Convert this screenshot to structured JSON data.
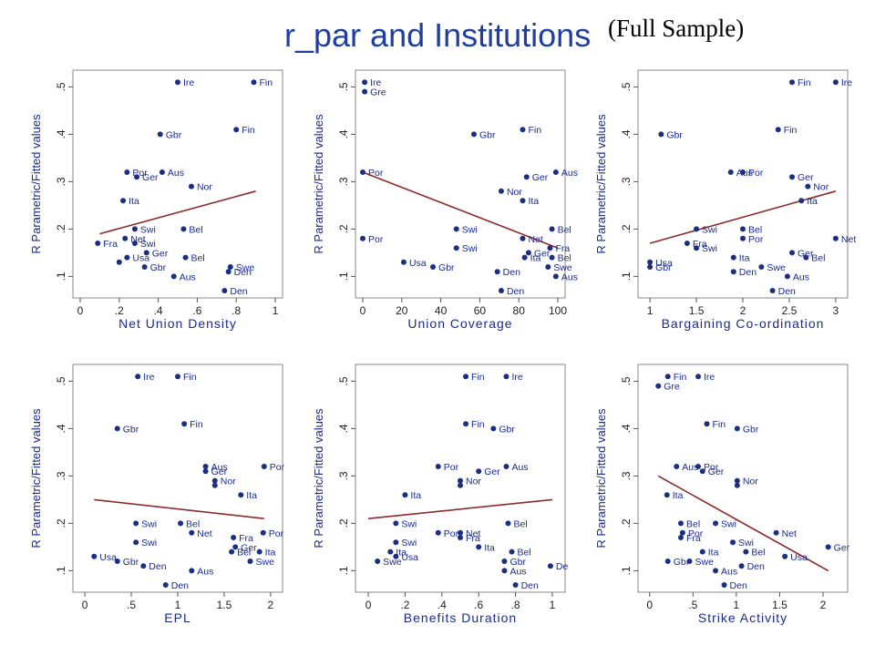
{
  "title": "r_par and Institutions",
  "subtitle": "(Full Sample)",
  "colors": {
    "title": "#1f3ea0",
    "points": "#1a2f80",
    "labels": "#1a2a90",
    "fit_line": "#8b2c2c"
  },
  "chart_data": [
    {
      "type": "scatter",
      "xlabel": "Net Union Density",
      "ylabel": "R Parametric/Fitted values",
      "xlim": [
        0,
        1
      ],
      "ylim": [
        0.07,
        0.52
      ],
      "xticks": [
        {
          "v": 0,
          "t": "0"
        },
        {
          "v": 0.2,
          "t": ".2"
        },
        {
          "v": 0.4,
          "t": ".4"
        },
        {
          "v": 0.6,
          "t": ".6"
        },
        {
          "v": 0.8,
          "t": ".8"
        },
        {
          "v": 1,
          "t": "1"
        }
      ],
      "yticks": [
        {
          "v": 0.1,
          "t": ".1"
        },
        {
          "v": 0.2,
          "t": ".2"
        },
        {
          "v": 0.3,
          "t": ".3"
        },
        {
          "v": 0.4,
          "t": ".4"
        },
        {
          "v": 0.5,
          "t": ".5"
        }
      ],
      "points": [
        {
          "x": 0.5,
          "y": 0.51,
          "label": "Ire"
        },
        {
          "x": 0.89,
          "y": 0.51,
          "label": "Fin"
        },
        {
          "x": 0.41,
          "y": 0.4,
          "label": "Gbr"
        },
        {
          "x": 0.8,
          "y": 0.41,
          "label": "Fin"
        },
        {
          "x": 0.24,
          "y": 0.32,
          "label": "Por"
        },
        {
          "x": 0.29,
          "y": 0.31,
          "label": "Ger"
        },
        {
          "x": 0.42,
          "y": 0.32,
          "label": "Aus"
        },
        {
          "x": 0.57,
          "y": 0.29,
          "label": "Nor"
        },
        {
          "x": 0.22,
          "y": 0.26,
          "label": "Ita"
        },
        {
          "x": 0.53,
          "y": 0.2,
          "label": "Bel"
        },
        {
          "x": 0.28,
          "y": 0.2,
          "label": "Swi"
        },
        {
          "x": 0.23,
          "y": 0.18,
          "label": "Net"
        },
        {
          "x": 0.09,
          "y": 0.17,
          "label": "Fra"
        },
        {
          "x": 0.28,
          "y": 0.17,
          "label": "Swi"
        },
        {
          "x": 0.34,
          "y": 0.15,
          "label": "Ger"
        },
        {
          "x": 0.24,
          "y": 0.14,
          "label": "Usa"
        },
        {
          "x": 0.54,
          "y": 0.14,
          "label": "Bel"
        },
        {
          "x": 0.33,
          "y": 0.12,
          "label": "Gbr"
        },
        {
          "x": 0.77,
          "y": 0.12,
          "label": "Swe"
        },
        {
          "x": 0.76,
          "y": 0.11,
          "label": "Den"
        },
        {
          "x": 0.48,
          "y": 0.1,
          "label": "Aus"
        },
        {
          "x": 0.74,
          "y": 0.07,
          "label": "Den"
        },
        {
          "x": 0.2,
          "y": 0.13,
          "label": ""
        }
      ],
      "fit": [
        [
          0.1,
          0.19
        ],
        [
          0.9,
          0.28
        ]
      ]
    },
    {
      "type": "scatter",
      "xlabel": "Union Coverage",
      "ylabel": "R Parametric/Fitted values",
      "xlim": [
        0,
        100
      ],
      "ylim": [
        0.07,
        0.52
      ],
      "xticks": [
        {
          "v": 0,
          "t": "0"
        },
        {
          "v": 20,
          "t": "20"
        },
        {
          "v": 40,
          "t": "40"
        },
        {
          "v": 60,
          "t": "60"
        },
        {
          "v": 80,
          "t": "80"
        },
        {
          "v": 100,
          "t": "100"
        }
      ],
      "yticks": [
        {
          "v": 0.1,
          "t": ".1"
        },
        {
          "v": 0.2,
          "t": ".2"
        },
        {
          "v": 0.3,
          "t": ".3"
        },
        {
          "v": 0.4,
          "t": ".4"
        },
        {
          "v": 0.5,
          "t": ".5"
        }
      ],
      "points": [
        {
          "x": 1,
          "y": 0.51,
          "label": "Ire"
        },
        {
          "x": 1,
          "y": 0.49,
          "label": "Gre"
        },
        {
          "x": 57,
          "y": 0.4,
          "label": "Gbr"
        },
        {
          "x": 82,
          "y": 0.41,
          "label": "Fin"
        },
        {
          "x": 0,
          "y": 0.32,
          "label": "Por"
        },
        {
          "x": 99,
          "y": 0.32,
          "label": "Aus"
        },
        {
          "x": 84,
          "y": 0.31,
          "label": "Ger"
        },
        {
          "x": 71,
          "y": 0.28,
          "label": "Nor"
        },
        {
          "x": 82,
          "y": 0.26,
          "label": "Ita"
        },
        {
          "x": 48,
          "y": 0.2,
          "label": "Swi"
        },
        {
          "x": 97,
          "y": 0.2,
          "label": "Bel"
        },
        {
          "x": 0,
          "y": 0.18,
          "label": "Por"
        },
        {
          "x": 82,
          "y": 0.18,
          "label": "Net"
        },
        {
          "x": 48,
          "y": 0.16,
          "label": "Swi"
        },
        {
          "x": 96,
          "y": 0.16,
          "label": "Fra"
        },
        {
          "x": 85,
          "y": 0.15,
          "label": "Ger"
        },
        {
          "x": 83,
          "y": 0.14,
          "label": "Ita"
        },
        {
          "x": 97,
          "y": 0.14,
          "label": "Bel"
        },
        {
          "x": 21,
          "y": 0.13,
          "label": "Usa"
        },
        {
          "x": 36,
          "y": 0.12,
          "label": "Gbr"
        },
        {
          "x": 95,
          "y": 0.12,
          "label": "Swe"
        },
        {
          "x": 69,
          "y": 0.11,
          "label": "Den"
        },
        {
          "x": 99,
          "y": 0.1,
          "label": "Aus"
        },
        {
          "x": 71,
          "y": 0.07,
          "label": "Den"
        }
      ],
      "fit": [
        [
          0,
          0.32
        ],
        [
          100,
          0.16
        ]
      ]
    },
    {
      "type": "scatter",
      "xlabel": "Bargaining Co-ordination",
      "ylabel": "R Parametric/Fitted values",
      "xlim": [
        0.95,
        3.05
      ],
      "ylim": [
        0.07,
        0.52
      ],
      "xticks": [
        {
          "v": 1,
          "t": "1"
        },
        {
          "v": 1.5,
          "t": "1.5"
        },
        {
          "v": 2,
          "t": "2"
        },
        {
          "v": 2.5,
          "t": "2.5"
        },
        {
          "v": 3,
          "t": "3"
        }
      ],
      "yticks": [
        {
          "v": 0.1,
          "t": ".1"
        },
        {
          "v": 0.2,
          "t": ".2"
        },
        {
          "v": 0.3,
          "t": ".3"
        },
        {
          "v": 0.4,
          "t": ".4"
        },
        {
          "v": 0.5,
          "t": ".5"
        }
      ],
      "points": [
        {
          "x": 2.53,
          "y": 0.51,
          "label": "Fin"
        },
        {
          "x": 3.0,
          "y": 0.51,
          "label": "Ire"
        },
        {
          "x": 1.12,
          "y": 0.4,
          "label": "Gbr"
        },
        {
          "x": 2.38,
          "y": 0.41,
          "label": "Fin"
        },
        {
          "x": 2.0,
          "y": 0.32,
          "label": "Por"
        },
        {
          "x": 1.87,
          "y": 0.32,
          "label": "Aus"
        },
        {
          "x": 2.53,
          "y": 0.31,
          "label": "Ger"
        },
        {
          "x": 2.7,
          "y": 0.29,
          "label": "Nor"
        },
        {
          "x": 2.63,
          "y": 0.26,
          "label": "Ita"
        },
        {
          "x": 1.5,
          "y": 0.2,
          "label": "Swi"
        },
        {
          "x": 2.0,
          "y": 0.2,
          "label": "Bel"
        },
        {
          "x": 3.0,
          "y": 0.18,
          "label": "Net"
        },
        {
          "x": 2.0,
          "y": 0.18,
          "label": "Por"
        },
        {
          "x": 1.4,
          "y": 0.17,
          "label": "Fra"
        },
        {
          "x": 1.5,
          "y": 0.16,
          "label": "Swi"
        },
        {
          "x": 2.53,
          "y": 0.15,
          "label": "Ger"
        },
        {
          "x": 1.9,
          "y": 0.14,
          "label": "Ita"
        },
        {
          "x": 2.68,
          "y": 0.14,
          "label": "Bel"
        },
        {
          "x": 1.0,
          "y": 0.13,
          "label": "Usa"
        },
        {
          "x": 1.0,
          "y": 0.12,
          "label": "Gbr"
        },
        {
          "x": 2.2,
          "y": 0.12,
          "label": "Swe"
        },
        {
          "x": 1.9,
          "y": 0.11,
          "label": "Den"
        },
        {
          "x": 2.48,
          "y": 0.1,
          "label": "Aus"
        },
        {
          "x": 2.32,
          "y": 0.07,
          "label": "Den"
        }
      ],
      "fit": [
        [
          1.0,
          0.17
        ],
        [
          3.0,
          0.28
        ]
      ]
    },
    {
      "type": "scatter",
      "xlabel": "EPL",
      "ylabel": "R Parametric/Fitted values",
      "xlim": [
        -0.05,
        2.05
      ],
      "ylim": [
        0.07,
        0.52
      ],
      "xticks": [
        {
          "v": 0,
          "t": "0"
        },
        {
          "v": 0.5,
          "t": ".5"
        },
        {
          "v": 1,
          "t": "1"
        },
        {
          "v": 1.5,
          "t": "1.5"
        },
        {
          "v": 2,
          "t": "2"
        }
      ],
      "yticks": [
        {
          "v": 0.1,
          "t": ".1"
        },
        {
          "v": 0.2,
          "t": ".2"
        },
        {
          "v": 0.3,
          "t": ".3"
        },
        {
          "v": 0.4,
          "t": ".4"
        },
        {
          "v": 0.5,
          "t": ".5"
        }
      ],
      "points": [
        {
          "x": 0.57,
          "y": 0.51,
          "label": "Ire"
        },
        {
          "x": 1.0,
          "y": 0.51,
          "label": "Fin"
        },
        {
          "x": 0.35,
          "y": 0.4,
          "label": "Gbr"
        },
        {
          "x": 1.07,
          "y": 0.41,
          "label": "Fin"
        },
        {
          "x": 1.3,
          "y": 0.32,
          "label": "Aus"
        },
        {
          "x": 1.3,
          "y": 0.31,
          "label": "Ger"
        },
        {
          "x": 1.93,
          "y": 0.32,
          "label": "Por"
        },
        {
          "x": 1.4,
          "y": 0.29,
          "label": "Nor"
        },
        {
          "x": 1.4,
          "y": 0.28,
          "label": ""
        },
        {
          "x": 1.68,
          "y": 0.26,
          "label": "Ita"
        },
        {
          "x": 0.55,
          "y": 0.2,
          "label": "Swi"
        },
        {
          "x": 1.03,
          "y": 0.2,
          "label": "Bel"
        },
        {
          "x": 1.92,
          "y": 0.18,
          "label": "Por"
        },
        {
          "x": 1.15,
          "y": 0.18,
          "label": "Net"
        },
        {
          "x": 0.55,
          "y": 0.16,
          "label": "Swi"
        },
        {
          "x": 1.6,
          "y": 0.17,
          "label": "Fra"
        },
        {
          "x": 1.62,
          "y": 0.15,
          "label": "Ger"
        },
        {
          "x": 1.88,
          "y": 0.14,
          "label": "Ita"
        },
        {
          "x": 0.1,
          "y": 0.13,
          "label": "Usa"
        },
        {
          "x": 0.35,
          "y": 0.12,
          "label": "Gbr"
        },
        {
          "x": 1.58,
          "y": 0.14,
          "label": "Bel"
        },
        {
          "x": 1.78,
          "y": 0.12,
          "label": "Swe"
        },
        {
          "x": 0.63,
          "y": 0.11,
          "label": "Den"
        },
        {
          "x": 1.15,
          "y": 0.1,
          "label": "Aus"
        },
        {
          "x": 0.87,
          "y": 0.07,
          "label": "Den"
        }
      ],
      "fit": [
        [
          0.1,
          0.25
        ],
        [
          1.93,
          0.21
        ]
      ]
    },
    {
      "type": "scatter",
      "xlabel": "Benefits Duration",
      "ylabel": "R Parametric/Fitted values",
      "xlim": [
        -0.03,
        1.03
      ],
      "ylim": [
        0.07,
        0.52
      ],
      "xticks": [
        {
          "v": 0,
          "t": "0"
        },
        {
          "v": 0.2,
          "t": ".2"
        },
        {
          "v": 0.4,
          "t": ".4"
        },
        {
          "v": 0.6,
          "t": ".6"
        },
        {
          "v": 0.8,
          "t": ".8"
        },
        {
          "v": 1,
          "t": "1"
        }
      ],
      "yticks": [
        {
          "v": 0.1,
          "t": ".1"
        },
        {
          "v": 0.2,
          "t": ".2"
        },
        {
          "v": 0.3,
          "t": ".3"
        },
        {
          "v": 0.4,
          "t": ".4"
        },
        {
          "v": 0.5,
          "t": ".5"
        }
      ],
      "points": [
        {
          "x": 0.53,
          "y": 0.51,
          "label": "Fin"
        },
        {
          "x": 0.75,
          "y": 0.51,
          "label": "Ire"
        },
        {
          "x": 0.53,
          "y": 0.41,
          "label": "Fin"
        },
        {
          "x": 0.68,
          "y": 0.4,
          "label": "Gbr"
        },
        {
          "x": 0.38,
          "y": 0.32,
          "label": "Por"
        },
        {
          "x": 0.6,
          "y": 0.31,
          "label": "Ger"
        },
        {
          "x": 0.75,
          "y": 0.32,
          "label": "Aus"
        },
        {
          "x": 0.5,
          "y": 0.29,
          "label": "Nor"
        },
        {
          "x": 0.5,
          "y": 0.28,
          "label": ""
        },
        {
          "x": 0.2,
          "y": 0.26,
          "label": "Ita"
        },
        {
          "x": 0.15,
          "y": 0.2,
          "label": "Swi"
        },
        {
          "x": 0.76,
          "y": 0.2,
          "label": "Bel"
        },
        {
          "x": 0.38,
          "y": 0.18,
          "label": "Por"
        },
        {
          "x": 0.5,
          "y": 0.18,
          "label": "Net"
        },
        {
          "x": 0.5,
          "y": 0.17,
          "label": "Fra"
        },
        {
          "x": 0.15,
          "y": 0.16,
          "label": "Swi"
        },
        {
          "x": 0.6,
          "y": 0.15,
          "label": "Ita"
        },
        {
          "x": 0.12,
          "y": 0.14,
          "label": "Ita"
        },
        {
          "x": 0.15,
          "y": 0.13,
          "label": "Usa"
        },
        {
          "x": 0.78,
          "y": 0.14,
          "label": "Bel"
        },
        {
          "x": 0.74,
          "y": 0.12,
          "label": "Gbr"
        },
        {
          "x": 0.05,
          "y": 0.12,
          "label": "Swe"
        },
        {
          "x": 0.99,
          "y": 0.11,
          "label": "De"
        },
        {
          "x": 0.74,
          "y": 0.1,
          "label": "Aus"
        },
        {
          "x": 0.8,
          "y": 0.07,
          "label": "Den"
        }
      ],
      "fit": [
        [
          0.0,
          0.21
        ],
        [
          1.0,
          0.25
        ]
      ]
    },
    {
      "type": "scatter",
      "xlabel": "Strike Activity",
      "ylabel": "R Parametric/Fitted values",
      "xlim": [
        -0.05,
        2.2
      ],
      "ylim": [
        0.07,
        0.52
      ],
      "xticks": [
        {
          "v": 0,
          "t": "0"
        },
        {
          "v": 0.5,
          "t": ".5"
        },
        {
          "v": 1,
          "t": "1"
        },
        {
          "v": 1.5,
          "t": "1.5"
        },
        {
          "v": 2,
          "t": "2"
        }
      ],
      "yticks": [
        {
          "v": 0.1,
          "t": ".1"
        },
        {
          "v": 0.2,
          "t": ".2"
        },
        {
          "v": 0.3,
          "t": ".3"
        },
        {
          "v": 0.4,
          "t": ".4"
        },
        {
          "v": 0.5,
          "t": ".5"
        }
      ],
      "points": [
        {
          "x": 0.21,
          "y": 0.51,
          "label": "Fin"
        },
        {
          "x": 0.56,
          "y": 0.51,
          "label": "Ire"
        },
        {
          "x": 0.1,
          "y": 0.49,
          "label": "Gre"
        },
        {
          "x": 0.66,
          "y": 0.41,
          "label": "Fin"
        },
        {
          "x": 1.01,
          "y": 0.4,
          "label": "Gbr"
        },
        {
          "x": 0.31,
          "y": 0.32,
          "label": "Aus"
        },
        {
          "x": 0.56,
          "y": 0.32,
          "label": "Por"
        },
        {
          "x": 0.61,
          "y": 0.31,
          "label": "Ger"
        },
        {
          "x": 1.01,
          "y": 0.29,
          "label": "Nor"
        },
        {
          "x": 1.01,
          "y": 0.28,
          "label": ""
        },
        {
          "x": 0.2,
          "y": 0.26,
          "label": "Ita"
        },
        {
          "x": 0.36,
          "y": 0.2,
          "label": "Bel"
        },
        {
          "x": 0.76,
          "y": 0.2,
          "label": "Swi"
        },
        {
          "x": 1.46,
          "y": 0.18,
          "label": "Net"
        },
        {
          "x": 0.38,
          "y": 0.18,
          "label": "Por"
        },
        {
          "x": 0.36,
          "y": 0.17,
          "label": "Fra"
        },
        {
          "x": 0.96,
          "y": 0.16,
          "label": "Swi"
        },
        {
          "x": 2.06,
          "y": 0.15,
          "label": "Ger"
        },
        {
          "x": 0.61,
          "y": 0.14,
          "label": "Ita"
        },
        {
          "x": 1.11,
          "y": 0.14,
          "label": "Bel"
        },
        {
          "x": 1.56,
          "y": 0.13,
          "label": "Usa"
        },
        {
          "x": 0.21,
          "y": 0.12,
          "label": "Gbr"
        },
        {
          "x": 0.46,
          "y": 0.12,
          "label": "Swe"
        },
        {
          "x": 1.06,
          "y": 0.11,
          "label": "Den"
        },
        {
          "x": 0.76,
          "y": 0.1,
          "label": "Aus"
        },
        {
          "x": 0.86,
          "y": 0.07,
          "label": "Den"
        }
      ],
      "fit": [
        [
          0.1,
          0.3
        ],
        [
          2.06,
          0.1
        ]
      ]
    }
  ]
}
